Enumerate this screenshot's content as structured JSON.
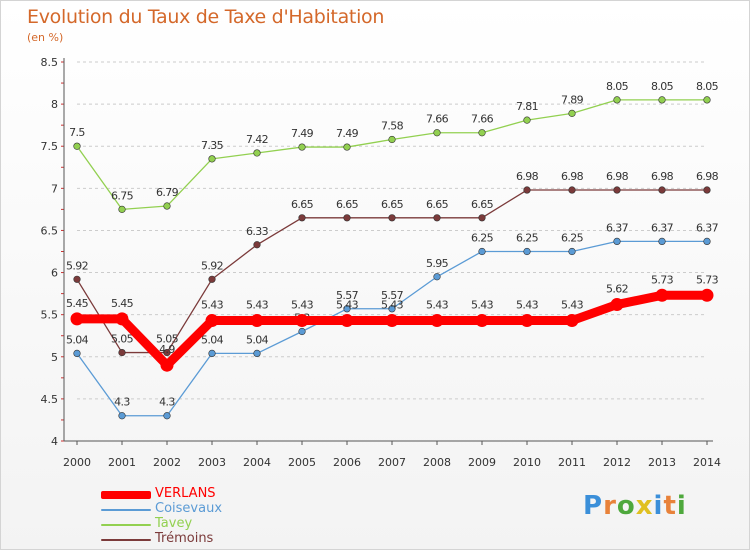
{
  "title": "Evolution du Taux de Taxe d'Habitation",
  "subtitle": "(en %)",
  "logo": {
    "text": "Proxiti",
    "colors": [
      "#3b8fd9",
      "#e8823a",
      "#4ea83c",
      "#e0c020",
      "#3b8fd9",
      "#e8823a",
      "#4ea83c"
    ]
  },
  "colors": {
    "title": "#d4682a",
    "axis": "#555555",
    "grid": "#cccccc"
  },
  "chart_data": {
    "type": "line",
    "xlabel": "",
    "ylabel": "",
    "x": [
      "2000",
      "2001",
      "2002",
      "2003",
      "2004",
      "2005",
      "2006",
      "2007",
      "2008",
      "2009",
      "2010",
      "2011",
      "2012",
      "2013",
      "2014"
    ],
    "ylim": [
      4,
      8.5
    ],
    "yticks": [
      "4",
      "4.5",
      "5",
      "5.5",
      "6",
      "6.5",
      "7",
      "7.5",
      "8",
      "8.5"
    ],
    "grid": "horizontal dashed",
    "legend": "bottom-left",
    "series": [
      {
        "name": "VERLANS",
        "color": "#ff0000",
        "width": "thick",
        "values": [
          5.45,
          5.45,
          4.9,
          5.43,
          5.43,
          5.43,
          5.43,
          5.43,
          5.43,
          5.43,
          5.43,
          5.43,
          5.62,
          5.73,
          5.73
        ],
        "labels": [
          "5.45",
          "5.45",
          "4.9",
          "5.43",
          "5.43",
          "5.43",
          "5.43",
          "5.43",
          "5.43",
          "5.43",
          "5.43",
          "5.43",
          "5.62",
          "5.73",
          "5.73"
        ]
      },
      {
        "name": "Coisevaux",
        "color": "#5b9bd5",
        "width": "thin",
        "values": [
          5.04,
          4.3,
          4.3,
          5.04,
          5.04,
          5.3,
          5.57,
          5.57,
          5.95,
          6.25,
          6.25,
          6.25,
          6.37,
          6.37,
          6.37
        ],
        "labels": [
          "5.04",
          "4.3",
          "4.3",
          "5.04",
          "5.04",
          "5.3",
          "5.57",
          "5.57",
          "5.95",
          "6.25",
          "6.25",
          "6.25",
          "6.37",
          "6.37",
          "6.37"
        ]
      },
      {
        "name": "Tavey",
        "color": "#92d050",
        "width": "thin",
        "values": [
          7.5,
          6.75,
          6.79,
          7.35,
          7.42,
          7.49,
          7.49,
          7.58,
          7.66,
          7.66,
          7.81,
          7.89,
          8.05,
          8.05,
          8.05
        ],
        "labels": [
          "7.5",
          "6.75",
          "6.79",
          "7.35",
          "7.42",
          "7.49",
          "7.49",
          "7.58",
          "7.66",
          "7.66",
          "7.81",
          "7.89",
          "8.05",
          "8.05",
          "8.05"
        ]
      },
      {
        "name": "Trémoins",
        "color": "#7b3a3a",
        "width": "thin",
        "values": [
          5.92,
          5.05,
          5.05,
          5.92,
          6.33,
          6.65,
          6.65,
          6.65,
          6.65,
          6.65,
          6.98,
          6.98,
          6.98,
          6.98,
          6.98
        ],
        "labels": [
          "5.92",
          "5.05",
          "5.05",
          "5.92",
          "6.33",
          "6.65",
          "6.65",
          "6.65",
          "6.65",
          "6.65",
          "6.98",
          "6.98",
          "6.98",
          "6.98",
          "6.98"
        ]
      }
    ]
  }
}
